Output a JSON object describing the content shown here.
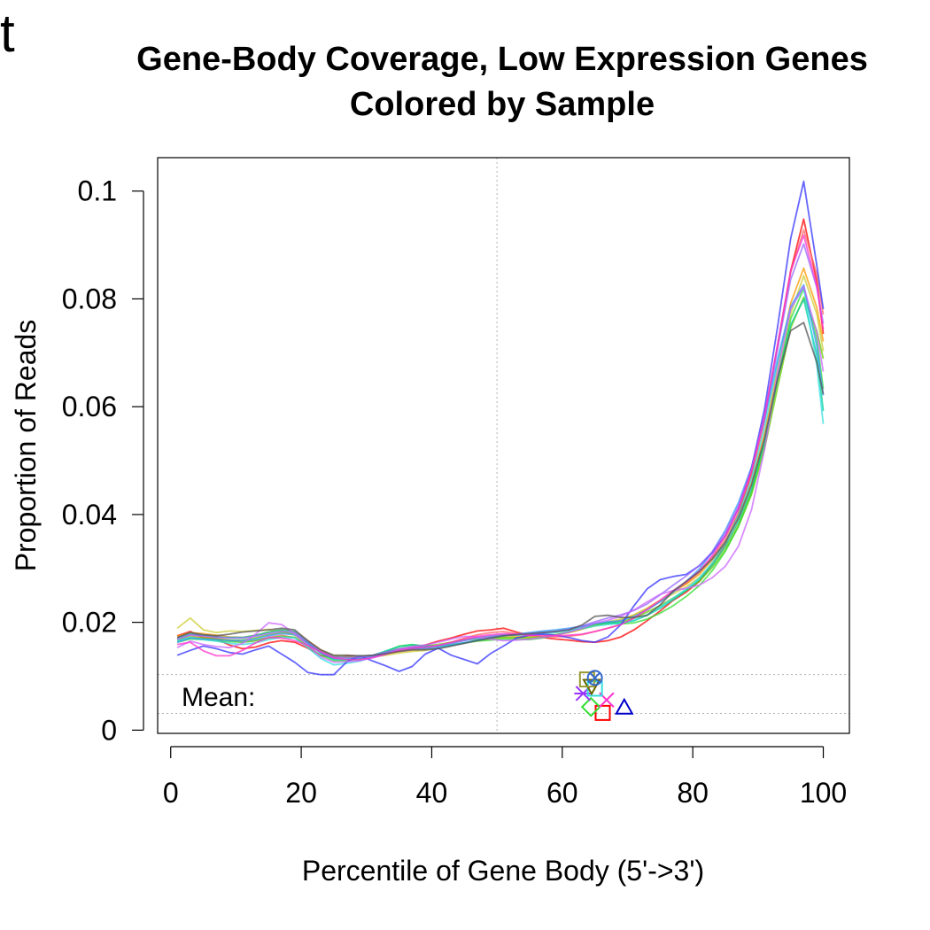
{
  "panel_letter": "t",
  "chart_data": {
    "type": "line",
    "title": "Gene-Body Coverage, Low Expression Genes",
    "subtitle": "Colored by Sample",
    "xlabel": "Percentile of Gene Body (5'->3')",
    "ylabel": "Proportion of Reads",
    "xlim": [
      -2,
      104
    ],
    "ylim": [
      -0.0006,
      0.1062
    ],
    "x_ticks": [
      "0",
      "20",
      "40",
      "60",
      "80",
      "100"
    ],
    "y_ticks": [
      "0",
      "0.02",
      "0.04",
      "0.06",
      "0.08",
      "0.1"
    ],
    "median_vline_x": 50,
    "mean_hlines": [
      0.0103,
      0.0031
    ],
    "mean_label": "Mean:",
    "x": [
      1,
      3,
      5,
      7,
      9,
      11,
      13,
      15,
      17,
      19,
      21,
      23,
      25,
      27,
      29,
      31,
      33,
      35,
      37,
      39,
      41,
      43,
      45,
      47,
      49,
      51,
      53,
      55,
      57,
      59,
      61,
      63,
      65,
      67,
      69,
      71,
      73,
      75,
      77,
      79,
      81,
      83,
      85,
      87,
      89,
      91,
      93,
      95,
      97,
      99,
      100
    ],
    "series": [
      {
        "color": "#FF0000",
        "values": [
          0.0175,
          0.0183,
          0.0172,
          0.0169,
          0.0158,
          0.0151,
          0.0154,
          0.0162,
          0.0166,
          0.0163,
          0.0152,
          0.0139,
          0.0134,
          0.0138,
          0.0136,
          0.0139,
          0.0144,
          0.0149,
          0.0152,
          0.0158,
          0.0165,
          0.0171,
          0.0178,
          0.0184,
          0.0186,
          0.0189,
          0.0182,
          0.0176,
          0.0172,
          0.0169,
          0.0167,
          0.0164,
          0.0163,
          0.0166,
          0.0173,
          0.0186,
          0.0203,
          0.0221,
          0.0241,
          0.0256,
          0.0276,
          0.0308,
          0.0346,
          0.0401,
          0.0476,
          0.0582,
          0.0713,
          0.0852,
          0.0948,
          0.0832,
          0.0735
        ]
      },
      {
        "color": "#FF6666",
        "values": [
          0.0168,
          0.0176,
          0.0172,
          0.0171,
          0.0167,
          0.0163,
          0.0166,
          0.0172,
          0.0176,
          0.0172,
          0.0159,
          0.0144,
          0.0136,
          0.0135,
          0.0134,
          0.0136,
          0.0141,
          0.0146,
          0.0149,
          0.0151,
          0.0156,
          0.0163,
          0.0171,
          0.0177,
          0.0181,
          0.0183,
          0.0179,
          0.0176,
          0.0174,
          0.0173,
          0.0174,
          0.0177,
          0.0183,
          0.0189,
          0.0196,
          0.0208,
          0.0223,
          0.0239,
          0.0256,
          0.0272,
          0.0293,
          0.0321,
          0.0355,
          0.0403,
          0.0471,
          0.0573,
          0.0712,
          0.0849,
          0.0928,
          0.0846,
          0.0771
        ]
      },
      {
        "color": "#FF9900",
        "values": [
          0.0174,
          0.0181,
          0.0179,
          0.0176,
          0.0173,
          0.0172,
          0.0176,
          0.0182,
          0.0186,
          0.0183,
          0.0166,
          0.0149,
          0.0138,
          0.0136,
          0.0134,
          0.0138,
          0.0143,
          0.0148,
          0.0151,
          0.0152,
          0.0156,
          0.0162,
          0.0168,
          0.0172,
          0.0174,
          0.0176,
          0.0174,
          0.0173,
          0.0174,
          0.0177,
          0.0181,
          0.0187,
          0.0194,
          0.0199,
          0.0204,
          0.0213,
          0.0226,
          0.0241,
          0.0257,
          0.0271,
          0.0289,
          0.0316,
          0.0349,
          0.0396,
          0.0458,
          0.0549,
          0.0671,
          0.0792,
          0.0857,
          0.0784,
          0.0721
        ]
      },
      {
        "color": "#CCCC33",
        "values": [
          0.0189,
          0.0208,
          0.0186,
          0.0181,
          0.0184,
          0.0183,
          0.0185,
          0.0187,
          0.0183,
          0.0176,
          0.0162,
          0.0146,
          0.0137,
          0.0135,
          0.0134,
          0.0136,
          0.0139,
          0.0143,
          0.0146,
          0.0148,
          0.0152,
          0.0157,
          0.0162,
          0.0166,
          0.0169,
          0.0172,
          0.0172,
          0.0172,
          0.0174,
          0.0177,
          0.0182,
          0.0188,
          0.0196,
          0.0201,
          0.0206,
          0.0214,
          0.0226,
          0.0239,
          0.0253,
          0.0266,
          0.0283,
          0.0308,
          0.0339,
          0.0383,
          0.0443,
          0.0531,
          0.0651,
          0.0772,
          0.0843,
          0.0772,
          0.0703
        ]
      },
      {
        "color": "#66CC00",
        "values": [
          0.0166,
          0.0173,
          0.0171,
          0.0169,
          0.0167,
          0.0167,
          0.0171,
          0.0177,
          0.0181,
          0.0179,
          0.0162,
          0.0146,
          0.0137,
          0.0136,
          0.0136,
          0.0139,
          0.0145,
          0.0151,
          0.0155,
          0.0156,
          0.0159,
          0.0163,
          0.0167,
          0.0169,
          0.0171,
          0.0172,
          0.0171,
          0.0171,
          0.0173,
          0.0177,
          0.0182,
          0.0188,
          0.0195,
          0.0198,
          0.0201,
          0.0208,
          0.0219,
          0.0231,
          0.0245,
          0.0259,
          0.0276,
          0.0302,
          0.0334,
          0.0378,
          0.0437,
          0.0522,
          0.0636,
          0.0746,
          0.0803,
          0.0741,
          0.0689
        ]
      },
      {
        "color": "#33DD33",
        "values": [
          0.0163,
          0.0169,
          0.0168,
          0.0166,
          0.0164,
          0.0163,
          0.0166,
          0.0171,
          0.0174,
          0.0172,
          0.0156,
          0.0139,
          0.0129,
          0.0129,
          0.0131,
          0.0137,
          0.0146,
          0.0156,
          0.0159,
          0.0156,
          0.0156,
          0.0158,
          0.0162,
          0.0165,
          0.0167,
          0.0169,
          0.0168,
          0.0168,
          0.0171,
          0.0176,
          0.0182,
          0.0189,
          0.0197,
          0.0199,
          0.0197,
          0.0199,
          0.0206,
          0.0217,
          0.0231,
          0.0248,
          0.0268,
          0.0296,
          0.0332,
          0.0378,
          0.0441,
          0.0532,
          0.0652,
          0.0763,
          0.0819,
          0.0726,
          0.0633
        ]
      },
      {
        "color": "#00CC99",
        "values": [
          0.0171,
          0.0178,
          0.0176,
          0.0173,
          0.0172,
          0.0172,
          0.0176,
          0.0182,
          0.0186,
          0.0183,
          0.0163,
          0.0143,
          0.0131,
          0.0131,
          0.0133,
          0.0139,
          0.0147,
          0.0155,
          0.0158,
          0.0156,
          0.0156,
          0.0158,
          0.0162,
          0.0167,
          0.0171,
          0.0176,
          0.0178,
          0.0179,
          0.0181,
          0.0183,
          0.0186,
          0.0191,
          0.0197,
          0.0199,
          0.0199,
          0.0203,
          0.0213,
          0.0226,
          0.0242,
          0.0259,
          0.0279,
          0.0306,
          0.0341,
          0.0387,
          0.0448,
          0.0536,
          0.0651,
          0.0752,
          0.0799,
          0.0696,
          0.0592
        ]
      },
      {
        "color": "#33DDDD",
        "values": [
          0.0166,
          0.0172,
          0.0168,
          0.0165,
          0.0161,
          0.0159,
          0.0162,
          0.0168,
          0.0172,
          0.0171,
          0.0153,
          0.0133,
          0.0121,
          0.0124,
          0.0128,
          0.0136,
          0.0143,
          0.0149,
          0.0152,
          0.0153,
          0.0156,
          0.0161,
          0.0166,
          0.0171,
          0.0174,
          0.0176,
          0.0176,
          0.0177,
          0.0178,
          0.0181,
          0.0184,
          0.0188,
          0.0193,
          0.0196,
          0.0198,
          0.0204,
          0.0214,
          0.0228,
          0.0245,
          0.0262,
          0.0282,
          0.0311,
          0.0348,
          0.0398,
          0.0466,
          0.0561,
          0.0682,
          0.0782,
          0.0821,
          0.0677,
          0.0568
        ]
      },
      {
        "color": "#3399FF",
        "values": [
          0.0163,
          0.0171,
          0.0169,
          0.0168,
          0.0166,
          0.0166,
          0.0169,
          0.0175,
          0.0179,
          0.0177,
          0.0161,
          0.0143,
          0.0133,
          0.0132,
          0.0133,
          0.0137,
          0.0143,
          0.0148,
          0.0151,
          0.0151,
          0.0153,
          0.0157,
          0.0162,
          0.0167,
          0.0171,
          0.0175,
          0.0178,
          0.0181,
          0.0184,
          0.0186,
          0.0189,
          0.0193,
          0.0198,
          0.0201,
          0.0203,
          0.0211,
          0.0223,
          0.0238,
          0.0256,
          0.0276,
          0.0299,
          0.0331,
          0.0371,
          0.0422,
          0.0488,
          0.0578,
          0.0689,
          0.0786,
          0.0826,
          0.0712,
          0.0621
        ]
      },
      {
        "color": "#3333FF",
        "values": [
          0.0139,
          0.0148,
          0.0156,
          0.0151,
          0.0144,
          0.0141,
          0.0149,
          0.0156,
          0.0141,
          0.0126,
          0.0107,
          0.0103,
          0.0103,
          0.0127,
          0.0138,
          0.0128,
          0.0119,
          0.0109,
          0.0118,
          0.0141,
          0.0152,
          0.0139,
          0.0131,
          0.0123,
          0.0142,
          0.0156,
          0.0171,
          0.0176,
          0.0178,
          0.0176,
          0.0172,
          0.0166,
          0.0163,
          0.0173,
          0.0196,
          0.0231,
          0.0262,
          0.0279,
          0.0285,
          0.0289,
          0.0305,
          0.0329,
          0.0361,
          0.0411,
          0.0486,
          0.0596,
          0.0749,
          0.0912,
          0.1018,
          0.0862,
          0.0781
        ]
      },
      {
        "color": "#9966FF",
        "values": [
          0.0169,
          0.0177,
          0.0175,
          0.0173,
          0.0171,
          0.0171,
          0.0174,
          0.0179,
          0.0183,
          0.0181,
          0.0164,
          0.0146,
          0.0136,
          0.0135,
          0.0135,
          0.0139,
          0.0145,
          0.0151,
          0.0154,
          0.0154,
          0.0157,
          0.0161,
          0.0166,
          0.0171,
          0.0174,
          0.0177,
          0.0178,
          0.0179,
          0.0181,
          0.0183,
          0.0187,
          0.0193,
          0.0201,
          0.0208,
          0.0214,
          0.0222,
          0.0234,
          0.0251,
          0.0269,
          0.0286,
          0.0305,
          0.0331,
          0.0367,
          0.0416,
          0.0484,
          0.0581,
          0.0708,
          0.0836,
          0.0902,
          0.0821,
          0.0754
        ]
      },
      {
        "color": "#CC66FF",
        "values": [
          0.0153,
          0.0165,
          0.0159,
          0.0155,
          0.0153,
          0.0161,
          0.0178,
          0.0199,
          0.0196,
          0.0179,
          0.0158,
          0.0136,
          0.0126,
          0.0127,
          0.0129,
          0.0134,
          0.0141,
          0.0149,
          0.0155,
          0.0158,
          0.0163,
          0.0169,
          0.0174,
          0.0173,
          0.0169,
          0.0166,
          0.0167,
          0.0169,
          0.0172,
          0.0176,
          0.0182,
          0.0189,
          0.0198,
          0.0204,
          0.0211,
          0.0223,
          0.0238,
          0.0252,
          0.0259,
          0.0263,
          0.0269,
          0.0283,
          0.0304,
          0.0341,
          0.0409,
          0.0521,
          0.0664,
          0.0782,
          0.0823,
          0.0738,
          0.0665
        ]
      },
      {
        "color": "#FF33CC",
        "values": [
          0.0159,
          0.0163,
          0.0147,
          0.0138,
          0.0138,
          0.0148,
          0.0162,
          0.0172,
          0.0171,
          0.0166,
          0.0157,
          0.0145,
          0.0134,
          0.0131,
          0.0131,
          0.0135,
          0.0141,
          0.0148,
          0.0152,
          0.0154,
          0.0157,
          0.0163,
          0.0169,
          0.0174,
          0.0177,
          0.0179,
          0.0178,
          0.0176,
          0.0175,
          0.0175,
          0.0176,
          0.0178,
          0.0183,
          0.0189,
          0.0196,
          0.0208,
          0.0224,
          0.0241,
          0.0259,
          0.0275,
          0.0295,
          0.0324,
          0.0361,
          0.0411,
          0.0481,
          0.0582,
          0.0717,
          0.0852,
          0.0918,
          0.0824,
          0.0743
        ]
      },
      {
        "color": "#555555",
        "values": [
          0.0172,
          0.0181,
          0.0177,
          0.0175,
          0.0178,
          0.0182,
          0.0184,
          0.0186,
          0.0189,
          0.0186,
          0.0166,
          0.0149,
          0.0139,
          0.0139,
          0.0138,
          0.0139,
          0.0142,
          0.0146,
          0.0149,
          0.0149,
          0.0151,
          0.0156,
          0.0161,
          0.0166,
          0.0171,
          0.0175,
          0.0177,
          0.0179,
          0.0181,
          0.0183,
          0.0186,
          0.0195,
          0.0211,
          0.0213,
          0.0209,
          0.0209,
          0.0213,
          0.0232,
          0.0258,
          0.0276,
          0.0294,
          0.0318,
          0.0349,
          0.0393,
          0.0455,
          0.0541,
          0.0653,
          0.0741,
          0.0756,
          0.0682,
          0.0623
        ]
      }
    ],
    "mean_markers": [
      {
        "shape": "square",
        "x": 66.2,
        "y": 0.0032,
        "color": "#FF0000"
      },
      {
        "shape": "triangle",
        "x": 69.5,
        "y": 0.0042,
        "color": "#0000CC"
      },
      {
        "shape": "diamond",
        "x": 64.4,
        "y": 0.0043,
        "color": "#33DD33"
      },
      {
        "shape": "x",
        "x": 66.8,
        "y": 0.0056,
        "color": "#FF33CC"
      },
      {
        "shape": "asterisk",
        "x": 63.2,
        "y": 0.0068,
        "color": "#9933FF"
      },
      {
        "shape": "square",
        "x": 65.0,
        "y": 0.0077,
        "color": "#33DDDD"
      },
      {
        "shape": "triangle-down",
        "x": 64.5,
        "y": 0.0082,
        "color": "#666600"
      },
      {
        "shape": "square",
        "x": 63.8,
        "y": 0.0094,
        "color": "#999933"
      },
      {
        "shape": "circle-x",
        "x": 65.0,
        "y": 0.0097,
        "color": "#3366CC"
      }
    ]
  }
}
